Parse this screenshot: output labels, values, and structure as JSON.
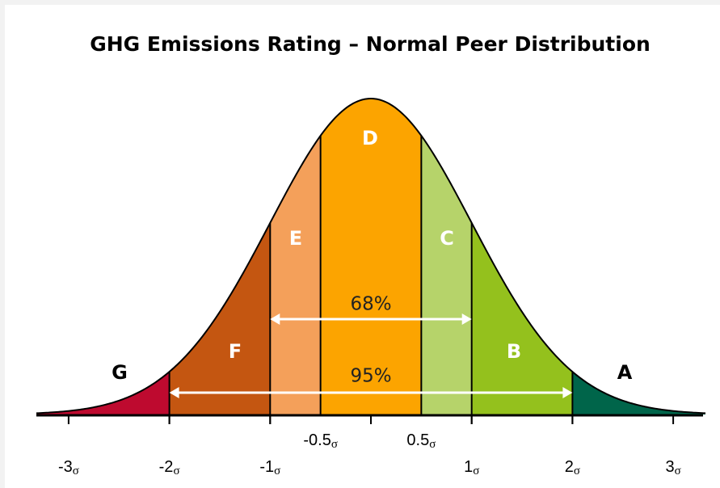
{
  "title": "GHG Emissions Rating – Normal Peer Distribution",
  "regions": [
    {
      "label": "G",
      "color": "#be0a2f"
    },
    {
      "label": "F",
      "color": "#c45611"
    },
    {
      "label": "E",
      "color": "#f4a05a"
    },
    {
      "label": "D",
      "color": "#fca400"
    },
    {
      "label": "C",
      "color": "#b6d36a"
    },
    {
      "label": "B",
      "color": "#94c11d"
    },
    {
      "label": "A",
      "color": "#00654a"
    }
  ],
  "bounds": [
    -2,
    -1,
    -0.5,
    0.5,
    1,
    2
  ],
  "ticks": [
    {
      "value": -3,
      "label": "-3",
      "symbol": "σ"
    },
    {
      "value": -2,
      "label": "-2",
      "symbol": "σ"
    },
    {
      "value": -1,
      "label": "-1",
      "symbol": "σ"
    },
    {
      "value": -0.5,
      "label": "-0.5",
      "symbol": "σ"
    },
    {
      "value": 0.5,
      "label": "0.5",
      "symbol": "σ"
    },
    {
      "value": 1,
      "label": "1",
      "symbol": "σ"
    },
    {
      "value": 2,
      "label": "2",
      "symbol": "σ"
    },
    {
      "value": 3,
      "label": "3",
      "symbol": "σ"
    }
  ],
  "spans": [
    {
      "label": "68%",
      "from": -1,
      "to": 1
    },
    {
      "label": "95%",
      "from": -2,
      "to": 2
    }
  ]
}
